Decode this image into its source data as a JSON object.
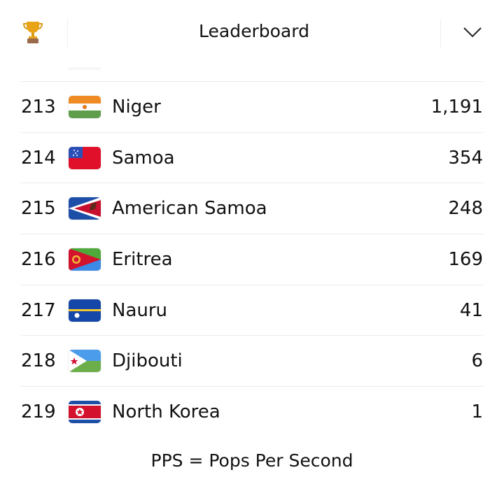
{
  "header": {
    "title": "Leaderboard",
    "left_icon": "trophy-icon",
    "right_icon": "chevron-down-icon"
  },
  "rows": [
    {
      "rank": "213",
      "country": "Niger",
      "flag": "niger",
      "pps": "1,191"
    },
    {
      "rank": "214",
      "country": "Samoa",
      "flag": "samoa",
      "pps": "354"
    },
    {
      "rank": "215",
      "country": "American Samoa",
      "flag": "american-samoa",
      "pps": "248"
    },
    {
      "rank": "216",
      "country": "Eritrea",
      "flag": "eritrea",
      "pps": "169"
    },
    {
      "rank": "217",
      "country": "Nauru",
      "flag": "nauru",
      "pps": "41"
    },
    {
      "rank": "218",
      "country": "Djibouti",
      "flag": "djibouti",
      "pps": "6"
    },
    {
      "rank": "219",
      "country": "North Korea",
      "flag": "north-korea",
      "pps": "1"
    }
  ],
  "footer": {
    "legend": "PPS = Pops Per Second"
  }
}
